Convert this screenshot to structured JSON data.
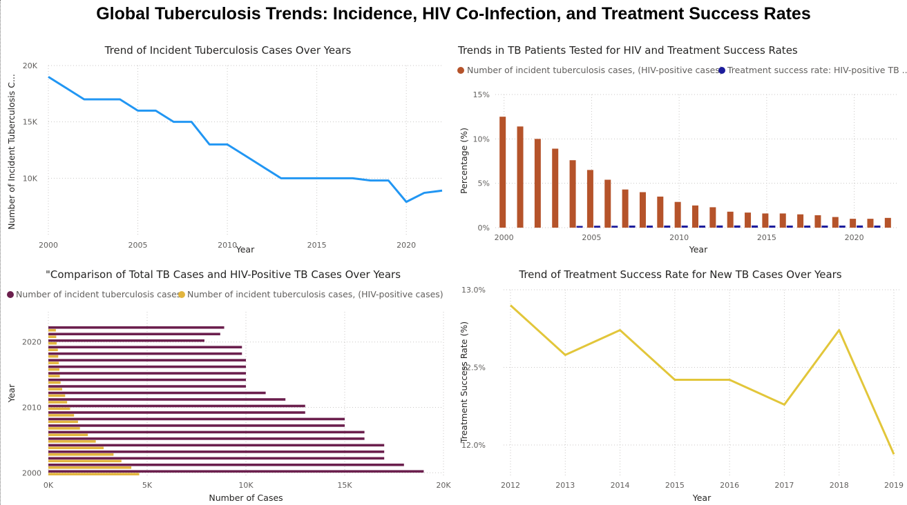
{
  "page_title": "Global Tuberculosis Trends: Incidence, HIV Co-Infection, and Treatment Success Rates",
  "colors": {
    "incidence_line": "#2196f3",
    "hiv_bar": "#b5532a",
    "success_rate_hiv": "#1c1c9c",
    "total_cases_bar": "#6b1f4d",
    "hiv_cases_bar": "#e2b53e",
    "success_line": "#e2c63a"
  },
  "chart_data": [
    {
      "id": "incidence",
      "type": "line",
      "title": "Trend of Incident Tuberculosis Cases Over Years",
      "xlabel": "Year",
      "ylabel": "Number of Incident Tuberculosis C...",
      "x": [
        2000,
        2001,
        2002,
        2003,
        2004,
        2005,
        2006,
        2007,
        2008,
        2009,
        2010,
        2011,
        2012,
        2013,
        2014,
        2015,
        2016,
        2017,
        2018,
        2019,
        2020,
        2021,
        2022
      ],
      "values": [
        19000,
        18000,
        17000,
        17000,
        17000,
        16000,
        16000,
        15000,
        15000,
        13000,
        13000,
        12000,
        11000,
        10000,
        10000,
        10000,
        10000,
        10000,
        9800,
        9800,
        7900,
        8700,
        8900
      ],
      "xlim": [
        2000,
        2022
      ],
      "ylim": [
        5000,
        20000
      ],
      "xticks": [
        "2000",
        "2005",
        "2010",
        "2015",
        "2020"
      ],
      "yticks": [
        "10K",
        "15K",
        "20K"
      ]
    },
    {
      "id": "hiv_tested",
      "type": "bar",
      "title": "Trends in TB Patients Tested for HIV and Treatment Success Rates",
      "xlabel": "Year",
      "ylabel": "Percentage (%)",
      "legend_position": "top-left",
      "categories": [
        2000,
        2001,
        2002,
        2003,
        2004,
        2005,
        2006,
        2007,
        2008,
        2009,
        2010,
        2011,
        2012,
        2013,
        2014,
        2015,
        2016,
        2017,
        2018,
        2019,
        2020,
        2021,
        2022
      ],
      "series": [
        {
          "name": "Number of incident tuberculosis cases,  (HIV-positive cases)",
          "values": [
            12.5,
            11.4,
            10.0,
            8.9,
            7.6,
            6.5,
            5.4,
            4.3,
            4.0,
            3.5,
            2.9,
            2.5,
            2.3,
            1.8,
            1.7,
            1.6,
            1.6,
            1.5,
            1.4,
            1.2,
            1.0,
            1.0,
            1.1
          ]
        },
        {
          "name": "Treatment success rate: HIV-positive TB ...",
          "values": [
            null,
            null,
            null,
            null,
            0.08,
            0.1,
            0.1,
            0.12,
            0.12,
            0.12,
            0.12,
            0.12,
            0.13,
            0.13,
            0.13,
            0.12,
            0.12,
            0.12,
            0.12,
            0.12,
            0.13,
            0.12,
            null
          ]
        }
      ],
      "ylim": [
        0,
        15
      ],
      "xticks": [
        "2000",
        "2005",
        "2010",
        "2015",
        "2020"
      ],
      "yticks": [
        "0%",
        "5%",
        "10%",
        "15%"
      ]
    },
    {
      "id": "comparison",
      "type": "bar",
      "orientation": "horizontal",
      "title": "\"Comparison of Total TB Cases and HIV-Positive TB Cases Over Years",
      "xlabel": "Number of Cases",
      "ylabel": "Year",
      "legend_position": "top-left",
      "categories": [
        2000,
        2001,
        2002,
        2003,
        2004,
        2005,
        2006,
        2007,
        2008,
        2009,
        2010,
        2011,
        2012,
        2013,
        2014,
        2015,
        2016,
        2017,
        2018,
        2019,
        2020,
        2021,
        2022
      ],
      "series": [
        {
          "name": "Number of incident tuberculosis cases",
          "values": [
            19000,
            18000,
            17000,
            17000,
            17000,
            16000,
            16000,
            15000,
            15000,
            13000,
            13000,
            12000,
            11000,
            10000,
            10000,
            10000,
            10000,
            10000,
            9800,
            9800,
            7900,
            8700,
            8900
          ]
        },
        {
          "name": "Number of incident tuberculosis cases,  (HIV-positive cases)",
          "values": [
            4600,
            4200,
            3700,
            3300,
            2800,
            2400,
            2000,
            1600,
            1500,
            1300,
            1100,
            950,
            850,
            700,
            620,
            580,
            560,
            530,
            500,
            480,
            420,
            400,
            380
          ]
        }
      ],
      "xlim": [
        0,
        20000
      ],
      "xticks": [
        "0K",
        "5K",
        "10K",
        "15K",
        "20K"
      ],
      "yticks": [
        "2000",
        "2010",
        "2020"
      ]
    },
    {
      "id": "success_rate",
      "type": "line",
      "title": "Trend of Treatment Success Rate for New TB Cases Over Years",
      "xlabel": "Year",
      "ylabel": "Treatment Success Rate (%)",
      "x": [
        2012,
        2013,
        2014,
        2015,
        2016,
        2017,
        2018,
        2019
      ],
      "values": [
        12.9,
        12.58,
        12.74,
        12.42,
        12.42,
        12.26,
        12.74,
        11.94
      ],
      "xlim": [
        2012,
        2019
      ],
      "ylim": [
        11.8,
        13.0
      ],
      "xticks": [
        "2012",
        "2013",
        "2014",
        "2015",
        "2016",
        "2017",
        "2018",
        "2019"
      ],
      "yticks": [
        "12.0%",
        "12.5%",
        "13.0%"
      ]
    }
  ]
}
